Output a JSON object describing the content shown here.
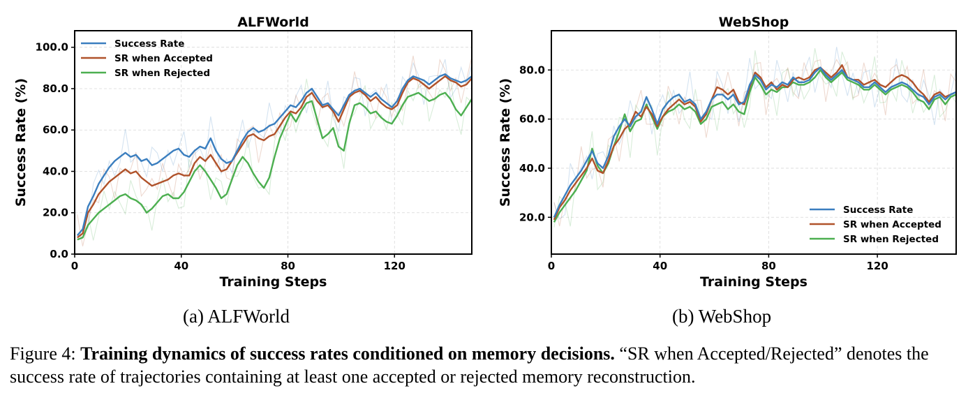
{
  "figure": {
    "subcaptions": [
      "(a) ALFWorld",
      "(b) WebShop"
    ],
    "caption_prefix": "Figure 4:",
    "caption_bold": "Training dynamics of success rates conditioned on memory decisions.",
    "caption_rest": "“SR when Accepted/Rejected” denotes the success rate of trajectories containing at least one accepted or rejected memory reconstruction."
  },
  "colors": {
    "success": "#3a7ebf",
    "accepted": "#b0522a",
    "rejected": "#4caf50"
  },
  "chart_data": [
    {
      "type": "line",
      "title": "ALFWorld",
      "xlabel": "Training Steps",
      "ylabel": "Success Rate (%)",
      "xlim": [
        0,
        149
      ],
      "ylim": [
        0,
        108
      ],
      "xticks": [
        0,
        40,
        80,
        120
      ],
      "yticks": [
        0,
        20,
        40,
        60,
        80,
        100
      ],
      "ytick_labels": [
        "0.0",
        "20.0",
        "40.0",
        "60.0",
        "80.0",
        "100.0"
      ],
      "grid": true,
      "legend_position": "top-left",
      "x": [
        1,
        3,
        5,
        7,
        9,
        11,
        13,
        15,
        17,
        19,
        21,
        23,
        25,
        27,
        29,
        31,
        33,
        35,
        37,
        39,
        41,
        43,
        45,
        47,
        49,
        51,
        53,
        55,
        57,
        59,
        61,
        63,
        65,
        67,
        69,
        71,
        73,
        75,
        77,
        79,
        81,
        83,
        85,
        87,
        89,
        91,
        93,
        95,
        97,
        99,
        101,
        103,
        105,
        107,
        109,
        111,
        113,
        115,
        117,
        119,
        121,
        123,
        125,
        127,
        129,
        131,
        133,
        135,
        137,
        139,
        141,
        143,
        145,
        147,
        149
      ],
      "series": [
        {
          "name": "Success Rate",
          "color_key": "success",
          "values": [
            9,
            12,
            23,
            28,
            34,
            38,
            42,
            45,
            47,
            49,
            47,
            48,
            45,
            46,
            43,
            44,
            46,
            48,
            50,
            51,
            48,
            47,
            50,
            52,
            51,
            56,
            50,
            46,
            44,
            45,
            50,
            55,
            59,
            61,
            59,
            60,
            62,
            63,
            66,
            69,
            72,
            71,
            74,
            78,
            80,
            76,
            72,
            73,
            70,
            67,
            72,
            77,
            79,
            80,
            78,
            76,
            78,
            75,
            73,
            71,
            74,
            80,
            84,
            86,
            85,
            84,
            82,
            84,
            86,
            87,
            85,
            84,
            83,
            84,
            86
          ]
        },
        {
          "name": "SR when Accepted",
          "color_key": "accepted",
          "values": [
            8,
            10,
            20,
            24,
            29,
            32,
            35,
            37,
            39,
            41,
            39,
            40,
            37,
            35,
            33,
            34,
            35,
            36,
            38,
            39,
            38,
            38,
            44,
            47,
            45,
            48,
            44,
            40,
            41,
            45,
            49,
            53,
            57,
            58,
            56,
            55,
            57,
            58,
            62,
            66,
            69,
            68,
            71,
            76,
            78,
            74,
            71,
            72,
            69,
            64,
            70,
            76,
            78,
            79,
            77,
            74,
            76,
            73,
            71,
            70,
            72,
            78,
            83,
            85,
            84,
            82,
            80,
            82,
            84,
            86,
            84,
            83,
            81,
            82,
            85
          ]
        },
        {
          "name": "SR when Rejected",
          "color_key": "rejected",
          "values": [
            7,
            8,
            14,
            17,
            20,
            22,
            24,
            26,
            28,
            29,
            27,
            26,
            24,
            20,
            22,
            25,
            28,
            29,
            27,
            27,
            30,
            35,
            40,
            43,
            40,
            36,
            32,
            27,
            29,
            36,
            43,
            47,
            44,
            39,
            35,
            32,
            37,
            47,
            56,
            62,
            68,
            64,
            69,
            73,
            74,
            65,
            56,
            58,
            61,
            52,
            50,
            63,
            72,
            73,
            71,
            68,
            69,
            66,
            64,
            63,
            67,
            72,
            76,
            77,
            78,
            76,
            74,
            75,
            77,
            78,
            75,
            70,
            67,
            71,
            75
          ]
        }
      ]
    },
    {
      "type": "line",
      "title": "WebShop",
      "xlabel": "Training Steps",
      "ylabel": "Success Rate (%)",
      "xlim": [
        0,
        149
      ],
      "ylim": [
        5,
        96
      ],
      "xticks": [
        0,
        40,
        80,
        120
      ],
      "yticks": [
        20,
        40,
        60,
        80
      ],
      "ytick_labels": [
        "20.0",
        "40.0",
        "60.0",
        "80.0"
      ],
      "grid": true,
      "legend_position": "bottom-right",
      "x": [
        1,
        3,
        5,
        7,
        9,
        11,
        13,
        15,
        17,
        19,
        21,
        23,
        25,
        27,
        29,
        31,
        33,
        35,
        37,
        39,
        41,
        43,
        45,
        47,
        49,
        51,
        53,
        55,
        57,
        59,
        61,
        63,
        65,
        67,
        69,
        71,
        73,
        75,
        77,
        79,
        81,
        83,
        85,
        87,
        89,
        91,
        93,
        95,
        97,
        99,
        101,
        103,
        105,
        107,
        109,
        111,
        113,
        115,
        117,
        119,
        121,
        123,
        125,
        127,
        129,
        131,
        133,
        135,
        137,
        139,
        141,
        143,
        145,
        147,
        149
      ],
      "series": [
        {
          "name": "Success Rate",
          "color_key": "success",
          "values": [
            20,
            25,
            29,
            33,
            36,
            39,
            43,
            47,
            42,
            40,
            45,
            53,
            57,
            60,
            57,
            61,
            63,
            69,
            64,
            58,
            64,
            67,
            69,
            70,
            67,
            68,
            66,
            60,
            63,
            68,
            70,
            70,
            68,
            70,
            66,
            67,
            74,
            78,
            76,
            72,
            74,
            73,
            75,
            74,
            77,
            75,
            75,
            76,
            79,
            81,
            78,
            76,
            78,
            80,
            77,
            76,
            75,
            73,
            73,
            75,
            73,
            71,
            73,
            74,
            75,
            74,
            72,
            70,
            69,
            66,
            69,
            70,
            68,
            70,
            71
          ]
        },
        {
          "name": "SR when Accepted",
          "color_key": "accepted",
          "values": [
            19,
            24,
            27,
            31,
            34,
            37,
            40,
            44,
            39,
            38,
            43,
            49,
            52,
            56,
            58,
            63,
            61,
            65,
            62,
            57,
            61,
            64,
            66,
            68,
            66,
            67,
            65,
            59,
            62,
            68,
            73,
            72,
            70,
            72,
            67,
            66,
            73,
            79,
            77,
            73,
            75,
            72,
            74,
            73,
            76,
            77,
            76,
            77,
            80,
            81,
            79,
            77,
            79,
            82,
            77,
            76,
            76,
            74,
            75,
            76,
            74,
            73,
            75,
            77,
            78,
            77,
            75,
            72,
            70,
            67,
            70,
            71,
            69,
            70,
            71
          ]
        },
        {
          "name": "SR when Rejected",
          "color_key": "rejected",
          "values": [
            18,
            22,
            25,
            28,
            31,
            35,
            39,
            48,
            41,
            38,
            42,
            49,
            55,
            62,
            55,
            59,
            60,
            66,
            61,
            56,
            61,
            63,
            64,
            66,
            64,
            65,
            63,
            58,
            60,
            65,
            66,
            67,
            64,
            66,
            63,
            62,
            71,
            77,
            74,
            70,
            72,
            71,
            73,
            73,
            75,
            74,
            74,
            75,
            77,
            80,
            77,
            75,
            77,
            79,
            76,
            75,
            74,
            72,
            72,
            74,
            72,
            70,
            72,
            73,
            74,
            73,
            71,
            68,
            67,
            64,
            68,
            69,
            66,
            69,
            70
          ]
        }
      ]
    }
  ]
}
